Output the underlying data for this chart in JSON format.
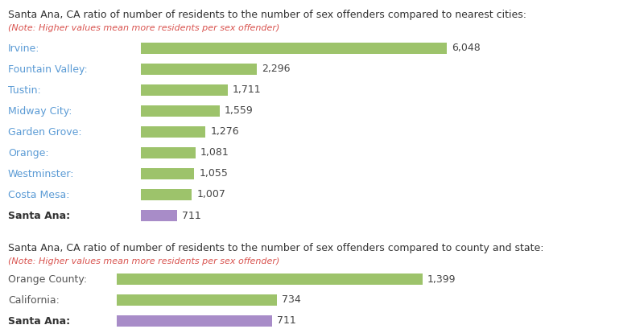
{
  "title1": "Santa Ana, CA ratio of number of residents to the number of sex offenders compared to nearest cities:",
  "note": "(Note: Higher values mean more residents per sex offender)",
  "title2": "Santa Ana, CA ratio of number of residents to the number of sex offenders compared to county and state:",
  "chart1_labels": [
    "Irvine:",
    "Fountain Valley:",
    "Tustin:",
    "Midway City:",
    "Garden Grove:",
    "Orange:",
    "Westminster:",
    "Costa Mesa:",
    "Santa Ana:"
  ],
  "chart1_values": [
    6048,
    2296,
    1711,
    1559,
    1276,
    1081,
    1055,
    1007,
    711
  ],
  "chart1_bold": [
    false,
    false,
    false,
    false,
    false,
    false,
    false,
    false,
    true
  ],
  "chart1_label_blue": [
    true,
    true,
    true,
    true,
    true,
    true,
    true,
    true,
    false
  ],
  "chart1_colors": [
    "#9dc36b",
    "#9dc36b",
    "#9dc36b",
    "#9dc36b",
    "#9dc36b",
    "#9dc36b",
    "#9dc36b",
    "#9dc36b",
    "#a88cc8"
  ],
  "chart2_labels": [
    "Orange County:",
    "California:",
    "Santa Ana:"
  ],
  "chart2_values": [
    1399,
    734,
    711
  ],
  "chart2_bold": [
    false,
    false,
    true
  ],
  "chart2_label_blue": [
    false,
    false,
    false
  ],
  "chart2_colors": [
    "#9dc36b",
    "#9dc36b",
    "#a88cc8"
  ],
  "label_color_blue": "#5b9bd5",
  "label_color_dark": "#555555",
  "label_color_bold": "#333333",
  "title_color": "#333333",
  "note_color": "#d9534f",
  "value_color": "#444444",
  "bg_color": "#ffffff"
}
